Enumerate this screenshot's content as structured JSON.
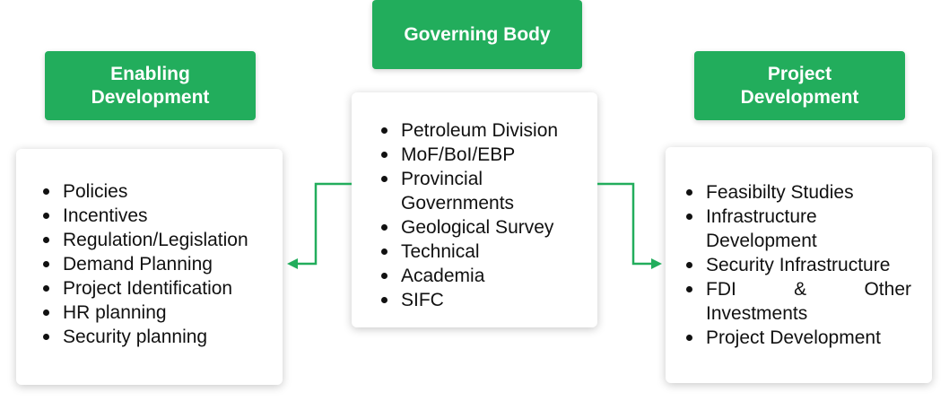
{
  "diagram": {
    "center": {
      "title": "Governing Body",
      "items": [
        "Petroleum Division",
        "MoF/BoI/EBP",
        "Provincial Governments",
        "Geological Survey",
        "Technical",
        "Academia",
        "SIFC"
      ]
    },
    "left": {
      "title": "Enabling Development",
      "items": [
        "Policies",
        "Incentives",
        "Regulation/Legislation",
        "Demand Planning",
        "Project Identification",
        "HR planning",
        "Security planning"
      ]
    },
    "right": {
      "title": "Project Development",
      "items": [
        "Feasibilty Studies",
        "Infrastructure Development",
        "Security Infrastructure",
        "FDI & Other Investments",
        "Project Development"
      ],
      "fdi_parts": [
        "FDI",
        "&",
        "Other"
      ],
      "fdi_rest": "Investments"
    }
  },
  "colors": {
    "header_green": "#22ad5c",
    "arrow_green": "#22ad5c",
    "text": "#111111"
  }
}
